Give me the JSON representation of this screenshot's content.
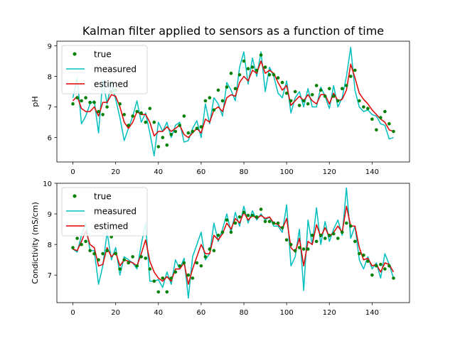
{
  "figure": {
    "title": "Kalman filter applied to sensors as a function of time"
  },
  "colors": {
    "true": "#008000",
    "measured": "#00bfbf",
    "estimed": "#e00000"
  },
  "chart_data": [
    {
      "type": "line",
      "ylabel": "pH",
      "xlim": [
        -7.5,
        157.5
      ],
      "ylim": [
        5.2,
        9.15
      ],
      "xticks": [
        0,
        20,
        40,
        60,
        80,
        100,
        120,
        140
      ],
      "yticks": [
        6,
        7,
        8,
        9
      ],
      "legend": "top-left",
      "series": [
        {
          "name": "true",
          "marker": "dot",
          "x": [
            0,
            2,
            4,
            6,
            8,
            10,
            12,
            14,
            16,
            18,
            20,
            22,
            24,
            26,
            28,
            30,
            32,
            34,
            36,
            38,
            40,
            42,
            44,
            46,
            48,
            50,
            52,
            54,
            56,
            58,
            60,
            62,
            64,
            66,
            68,
            70,
            72,
            74,
            76,
            78,
            80,
            82,
            84,
            86,
            88,
            90,
            92,
            94,
            96,
            98,
            100,
            102,
            104,
            106,
            108,
            110,
            112,
            114,
            116,
            118,
            120,
            122,
            124,
            126,
            128,
            130,
            132,
            134,
            136,
            138,
            140,
            142,
            144,
            146,
            148,
            150
          ],
          "y": [
            7.1,
            7.3,
            7.2,
            7.3,
            7.15,
            7.15,
            6.85,
            6.75,
            7.0,
            7.5,
            7.55,
            7.1,
            6.75,
            6.4,
            6.7,
            6.85,
            6.8,
            6.5,
            6.95,
            6.5,
            5.7,
            6.0,
            5.75,
            6.1,
            6.2,
            6.4,
            6.7,
            6.15,
            6.2,
            6.3,
            6.35,
            7.2,
            7.3,
            6.9,
            7.55,
            7.2,
            7.65,
            8.1,
            7.6,
            8.05,
            8.5,
            8.25,
            8.3,
            8.2,
            8.7,
            8.3,
            8.05,
            8.05,
            7.95,
            7.8,
            7.45,
            7.2,
            7.5,
            7.05,
            7.2,
            7.1,
            7.4,
            7.7,
            7.55,
            7.35,
            7.6,
            7.35,
            7.2,
            7.6,
            7.7,
            8.0,
            8.2,
            7.2,
            7.0,
            6.95,
            6.6,
            6.25,
            6.65,
            6.85,
            6.45,
            6.2
          ]
        },
        {
          "name": "measured",
          "marker": "line",
          "x": [
            0,
            2,
            4,
            6,
            8,
            10,
            12,
            14,
            16,
            18,
            20,
            22,
            24,
            26,
            28,
            30,
            32,
            34,
            36,
            38,
            40,
            42,
            44,
            46,
            48,
            50,
            52,
            54,
            56,
            58,
            60,
            62,
            64,
            66,
            68,
            70,
            72,
            74,
            76,
            78,
            80,
            82,
            84,
            86,
            88,
            90,
            92,
            94,
            96,
            98,
            100,
            102,
            104,
            106,
            108,
            110,
            112,
            114,
            116,
            118,
            120,
            122,
            124,
            126,
            128,
            130,
            132,
            134,
            136,
            138,
            140,
            142,
            144,
            146,
            148,
            150
          ],
          "y": [
            7.3,
            7.95,
            6.45,
            6.7,
            7.1,
            7.2,
            6.15,
            7.9,
            7.1,
            7.8,
            7.25,
            6.65,
            5.9,
            6.3,
            6.7,
            7.2,
            6.5,
            6.8,
            6.15,
            5.4,
            6.5,
            6.2,
            6.5,
            6.0,
            6.4,
            6.5,
            5.85,
            5.9,
            6.3,
            6.55,
            6.0,
            7.1,
            6.45,
            7.3,
            7.1,
            6.7,
            7.8,
            7.55,
            7.2,
            8.3,
            8.8,
            7.75,
            8.6,
            8.0,
            8.8,
            7.5,
            8.3,
            8.0,
            7.45,
            7.3,
            7.85,
            6.8,
            7.3,
            7.5,
            7.0,
            7.6,
            7.0,
            7.0,
            7.65,
            7.35,
            6.95,
            7.7,
            7.0,
            7.3,
            8.0,
            8.95,
            7.55,
            7.0,
            6.85,
            6.9,
            6.75,
            6.7,
            6.45,
            6.4,
            5.95,
            6.0
          ]
        },
        {
          "name": "estimed",
          "marker": "line",
          "x": [
            0,
            2,
            4,
            6,
            8,
            10,
            12,
            14,
            16,
            18,
            20,
            22,
            24,
            26,
            28,
            30,
            32,
            34,
            36,
            38,
            40,
            42,
            44,
            46,
            48,
            50,
            52,
            54,
            56,
            58,
            60,
            62,
            64,
            66,
            68,
            70,
            72,
            74,
            76,
            78,
            80,
            82,
            84,
            86,
            88,
            90,
            92,
            94,
            96,
            98,
            100,
            102,
            104,
            106,
            108,
            110,
            112,
            114,
            116,
            118,
            120,
            122,
            124,
            126,
            128,
            130,
            132,
            134,
            136,
            138,
            140,
            142,
            144,
            146,
            148,
            150
          ],
          "y": [
            7.2,
            7.35,
            6.95,
            6.85,
            6.85,
            7.0,
            6.7,
            7.15,
            7.15,
            7.4,
            7.35,
            7.0,
            6.5,
            6.3,
            6.5,
            6.85,
            6.75,
            6.75,
            6.5,
            6.05,
            6.2,
            6.2,
            6.35,
            6.2,
            6.3,
            6.4,
            6.1,
            6.0,
            6.15,
            6.3,
            6.15,
            6.6,
            6.5,
            6.9,
            7.0,
            6.85,
            7.3,
            7.4,
            7.35,
            7.8,
            8.0,
            7.85,
            8.2,
            8.1,
            8.5,
            8.1,
            8.2,
            8.1,
            7.8,
            7.55,
            7.7,
            7.05,
            7.2,
            7.35,
            7.2,
            7.4,
            7.2,
            7.1,
            7.4,
            7.4,
            7.1,
            7.45,
            7.2,
            7.25,
            7.55,
            8.4,
            7.95,
            7.45,
            7.25,
            7.1,
            6.9,
            6.75,
            6.6,
            6.5,
            6.25,
            6.2
          ]
        }
      ]
    },
    {
      "type": "line",
      "ylabel": "Condictivity (mS/cm)",
      "xlim": [
        -7.5,
        157.5
      ],
      "ylim": [
        6.1,
        10.0
      ],
      "xticks": [
        0,
        20,
        40,
        60,
        80,
        100,
        120,
        140
      ],
      "yticks": [
        7,
        8,
        9,
        10
      ],
      "legend": "top-left",
      "series": [
        {
          "name": "true",
          "marker": "dot",
          "x": [
            0,
            2,
            4,
            6,
            8,
            10,
            12,
            14,
            16,
            18,
            20,
            22,
            24,
            26,
            28,
            30,
            32,
            34,
            36,
            38,
            40,
            42,
            44,
            46,
            48,
            50,
            52,
            54,
            56,
            58,
            60,
            62,
            64,
            66,
            68,
            70,
            72,
            74,
            76,
            78,
            80,
            82,
            84,
            86,
            88,
            90,
            92,
            94,
            96,
            98,
            100,
            102,
            104,
            106,
            108,
            110,
            112,
            114,
            116,
            118,
            120,
            122,
            124,
            126,
            128,
            130,
            132,
            134,
            136,
            138,
            140,
            142,
            144,
            146,
            148,
            150
          ],
          "y": [
            7.9,
            8.2,
            8.0,
            8.1,
            7.8,
            7.7,
            7.5,
            7.7,
            7.8,
            8.25,
            7.7,
            7.2,
            7.5,
            7.4,
            7.6,
            7.3,
            7.6,
            7.55,
            7.2,
            6.8,
            6.45,
            6.9,
            6.45,
            6.9,
            7.1,
            7.3,
            7.4,
            7.0,
            6.9,
            7.4,
            7.3,
            7.6,
            7.85,
            7.8,
            8.3,
            8.4,
            8.8,
            8.4,
            8.7,
            8.9,
            9.05,
            8.95,
            8.95,
            8.9,
            9.15,
            8.75,
            8.75,
            8.7,
            8.7,
            8.55,
            8.15,
            8.0,
            7.8,
            7.9,
            7.85,
            7.85,
            8.3,
            8.1,
            8.3,
            8.2,
            8.3,
            8.35,
            8.2,
            8.4,
            8.7,
            8.6,
            8.1,
            7.7,
            7.65,
            7.45,
            7.0,
            7.3,
            7.35,
            7.2,
            7.3,
            6.9
          ]
        },
        {
          "name": "measured",
          "marker": "line",
          "x": [
            0,
            2,
            4,
            6,
            8,
            10,
            12,
            14,
            16,
            18,
            20,
            22,
            24,
            26,
            28,
            30,
            32,
            34,
            36,
            38,
            40,
            42,
            44,
            46,
            48,
            50,
            52,
            54,
            56,
            58,
            60,
            62,
            64,
            66,
            68,
            70,
            72,
            74,
            76,
            78,
            80,
            82,
            84,
            86,
            88,
            90,
            92,
            94,
            96,
            98,
            100,
            102,
            104,
            106,
            108,
            110,
            112,
            114,
            116,
            118,
            120,
            122,
            124,
            126,
            128,
            130,
            132,
            134,
            136,
            138,
            140,
            142,
            144,
            146,
            148,
            150
          ],
          "y": [
            7.85,
            7.75,
            8.3,
            8.7,
            7.8,
            7.8,
            6.7,
            7.3,
            8.4,
            7.5,
            7.9,
            7.0,
            7.6,
            7.5,
            7.4,
            7.2,
            8.0,
            8.7,
            6.8,
            6.8,
            6.85,
            6.6,
            7.1,
            6.7,
            7.5,
            7.2,
            7.55,
            6.25,
            7.6,
            8.0,
            8.4,
            7.5,
            7.7,
            8.7,
            8.1,
            8.5,
            9.0,
            8.4,
            9.05,
            8.6,
            9.25,
            8.7,
            9.1,
            8.8,
            9.0,
            8.8,
            8.9,
            8.6,
            8.6,
            8.4,
            9.3,
            7.3,
            7.6,
            8.5,
            6.5,
            8.8,
            8.0,
            9.2,
            8.0,
            8.75,
            8.1,
            8.5,
            8.8,
            8.3,
            9.85,
            8.2,
            8.6,
            7.5,
            7.2,
            7.6,
            7.2,
            7.4,
            6.9,
            7.7,
            7.35,
            6.9
          ]
        },
        {
          "name": "estimed",
          "marker": "line",
          "x": [
            0,
            2,
            4,
            6,
            8,
            10,
            12,
            14,
            16,
            18,
            20,
            22,
            24,
            26,
            28,
            30,
            32,
            34,
            36,
            38,
            40,
            42,
            44,
            46,
            48,
            50,
            52,
            54,
            56,
            58,
            60,
            62,
            64,
            66,
            68,
            70,
            72,
            74,
            76,
            78,
            80,
            82,
            84,
            86,
            88,
            90,
            92,
            94,
            96,
            98,
            100,
            102,
            104,
            106,
            108,
            110,
            112,
            114,
            116,
            118,
            120,
            122,
            124,
            126,
            128,
            130,
            132,
            134,
            136,
            138,
            140,
            142,
            144,
            146,
            148,
            150
          ],
          "y": [
            7.85,
            7.8,
            8.1,
            8.45,
            8.0,
            7.9,
            7.3,
            7.35,
            7.9,
            7.6,
            7.75,
            7.3,
            7.5,
            7.45,
            7.4,
            7.3,
            7.7,
            8.15,
            7.45,
            7.1,
            6.9,
            6.8,
            6.95,
            6.8,
            7.2,
            7.2,
            7.4,
            6.7,
            7.2,
            7.6,
            8.0,
            7.7,
            7.7,
            8.3,
            8.15,
            8.35,
            8.7,
            8.5,
            8.85,
            8.7,
            9.05,
            8.8,
            8.95,
            8.85,
            8.95,
            8.85,
            8.9,
            8.7,
            8.65,
            8.5,
            8.85,
            7.9,
            7.75,
            8.2,
            7.3,
            8.1,
            8.0,
            8.65,
            8.25,
            8.55,
            8.25,
            8.4,
            8.6,
            8.4,
            9.25,
            8.6,
            8.6,
            7.9,
            7.5,
            7.55,
            7.3,
            7.35,
            7.1,
            7.4,
            7.35,
            7.1
          ]
        }
      ]
    }
  ]
}
